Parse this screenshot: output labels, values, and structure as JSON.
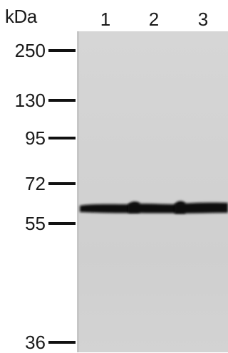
{
  "unit_label": "kDa",
  "lanes": [
    "1",
    "2",
    "3"
  ],
  "markers": [
    "250",
    "130",
    "95",
    "72",
    "55",
    "36"
  ],
  "colors": {
    "membrane": "#d3d3d3",
    "band": "#0e0e0e",
    "text": "#1a1a1a"
  }
}
